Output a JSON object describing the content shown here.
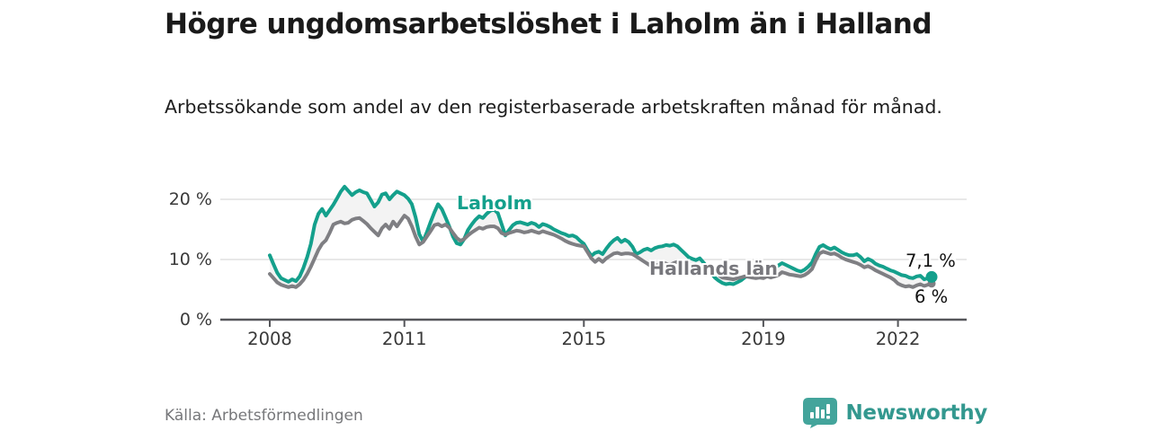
{
  "header": {
    "title": "Högre ungdomsarbetslöshet i Laholm än i Halland",
    "subtitle": "Arbetssökande som andel av den registerbaserade arbetskraften månad för månad."
  },
  "chart_data": {
    "type": "line",
    "title": "Högre ungdomsarbetslöshet i Laholm än i Halland",
    "xlabel": "",
    "ylabel": "Arbetssökande som andel av den registerbaserade arbetskraften",
    "x_start_year": 2008,
    "points_per_year": 12,
    "x_tick_years": [
      2008,
      2011,
      2015,
      2019,
      2022
    ],
    "x_tick_labels": [
      "2008",
      "2011",
      "2015",
      "2019",
      "2022"
    ],
    "y_tick_values": [
      0,
      10,
      20
    ],
    "y_tick_labels": [
      "0 %",
      "10 %",
      "20 %"
    ],
    "ylim": [
      0,
      23
    ],
    "grid": "horizontal",
    "legend_position": "inline-labels",
    "band_fill_between_series": true,
    "series": [
      {
        "name": "Laholm",
        "color": "#14a08c",
        "end_label": "7,1 %",
        "end_value": 7.1,
        "end_marker": "dot",
        "values": [
          10.7,
          9.2,
          7.8,
          6.9,
          6.6,
          6.3,
          6.7,
          6.4,
          7.2,
          8.6,
          10.4,
          12.6,
          15.8,
          17.6,
          18.4,
          17.3,
          18.2,
          19.1,
          20.2,
          21.3,
          22.1,
          21.4,
          20.7,
          21.2,
          21.5,
          21.2,
          21.0,
          19.9,
          18.8,
          19.5,
          20.8,
          21.0,
          20.0,
          20.7,
          21.3,
          21.0,
          20.7,
          20.1,
          19.2,
          17.0,
          14.2,
          13.0,
          14.5,
          16.2,
          17.8,
          19.2,
          18.4,
          17.0,
          15.5,
          13.8,
          12.7,
          12.5,
          13.4,
          14.9,
          15.8,
          16.6,
          17.2,
          16.9,
          17.6,
          18.1,
          18.3,
          17.7,
          15.9,
          14.0,
          14.9,
          15.7,
          16.1,
          16.2,
          16.0,
          15.8,
          16.1,
          15.9,
          15.4,
          15.9,
          15.7,
          15.4,
          15.0,
          14.7,
          14.4,
          14.2,
          13.9,
          14.0,
          13.7,
          13.1,
          12.6,
          11.5,
          10.6,
          11.1,
          11.3,
          10.9,
          11.8,
          12.6,
          13.2,
          13.6,
          12.9,
          13.3,
          12.9,
          12.1,
          10.9,
          11.2,
          11.6,
          11.8,
          11.5,
          11.9,
          12.1,
          12.2,
          12.4,
          12.3,
          12.5,
          12.2,
          11.6,
          11.0,
          10.4,
          10.1,
          9.9,
          10.2,
          9.5,
          8.7,
          7.8,
          7.0,
          6.5,
          6.1,
          5.9,
          6.0,
          5.9,
          6.2,
          6.5,
          7.0,
          7.4,
          7.7,
          7.6,
          7.8,
          7.9,
          8.6,
          8.1,
          8.5,
          9.0,
          9.4,
          9.1,
          8.8,
          8.5,
          8.2,
          8.0,
          8.3,
          8.8,
          9.5,
          10.9,
          12.1,
          12.4,
          12.0,
          11.7,
          12.0,
          11.6,
          11.2,
          10.9,
          10.7,
          10.7,
          10.9,
          10.4,
          9.7,
          10.1,
          9.8,
          9.3,
          9.0,
          8.8,
          8.5,
          8.2,
          8.0,
          7.7,
          7.4,
          7.3,
          7.0,
          6.9,
          7.2,
          7.3,
          6.7,
          6.9,
          7.1
        ]
      },
      {
        "name": "Hallands län",
        "color": "#7f7f83",
        "end_label": "6 %",
        "end_value": 6,
        "end_marker": "cap",
        "values": [
          7.6,
          6.9,
          6.2,
          5.8,
          5.6,
          5.4,
          5.6,
          5.4,
          5.9,
          6.6,
          7.6,
          8.8,
          10.2,
          11.6,
          12.6,
          13.2,
          14.4,
          15.8,
          16.1,
          16.3,
          16.0,
          16.1,
          16.6,
          16.8,
          16.9,
          16.4,
          15.9,
          15.2,
          14.6,
          14.0,
          15.2,
          15.8,
          15.1,
          16.3,
          15.5,
          16.4,
          17.3,
          16.8,
          15.5,
          13.8,
          12.5,
          12.9,
          13.8,
          14.7,
          15.7,
          15.9,
          15.5,
          15.8,
          15.3,
          14.4,
          13.6,
          13.1,
          13.4,
          14.0,
          14.5,
          14.9,
          15.3,
          15.1,
          15.4,
          15.5,
          15.5,
          15.2,
          14.4,
          14.1,
          14.4,
          14.6,
          14.8,
          14.7,
          14.5,
          14.6,
          14.8,
          14.6,
          14.4,
          14.7,
          14.5,
          14.3,
          14.1,
          13.8,
          13.5,
          13.1,
          12.8,
          12.6,
          12.4,
          12.3,
          12.2,
          11.2,
          10.2,
          9.6,
          10.1,
          9.6,
          10.2,
          10.6,
          11.0,
          11.1,
          10.9,
          11.0,
          11.0,
          10.9,
          10.5,
          10.1,
          9.7,
          9.3,
          8.9,
          8.8,
          9.2,
          9.6,
          9.3,
          9.1,
          9.4,
          9.6,
          9.1,
          8.6,
          8.4,
          8.6,
          8.8,
          8.9,
          8.6,
          8.2,
          7.9,
          7.9,
          7.4,
          7.0,
          6.9,
          6.8,
          6.7,
          6.9,
          7.0,
          7.2,
          7.1,
          7.0,
          6.9,
          7.0,
          6.9,
          7.2,
          7.0,
          7.2,
          7.4,
          7.9,
          7.7,
          7.5,
          7.4,
          7.3,
          7.2,
          7.4,
          7.8,
          8.4,
          9.8,
          11.0,
          11.3,
          11.1,
          10.9,
          11.0,
          10.7,
          10.3,
          10.0,
          9.8,
          9.6,
          9.4,
          9.1,
          8.7,
          8.9,
          8.6,
          8.2,
          7.9,
          7.6,
          7.3,
          7.0,
          6.6,
          6.0,
          5.7,
          5.5,
          5.6,
          5.4,
          5.7,
          5.9,
          5.6,
          5.8,
          6.0
        ]
      }
    ]
  },
  "colors": {
    "accent_teal": "#14a08c",
    "series_gray": "#7f7f83",
    "grid": "#dadada",
    "axis": "#55565a",
    "band_fill": "#f3f3f3",
    "logo_teal": "#43a49b"
  },
  "footer": {
    "source": "Källa: Arbetsförmedlingen",
    "brand": "Newsworthy"
  }
}
